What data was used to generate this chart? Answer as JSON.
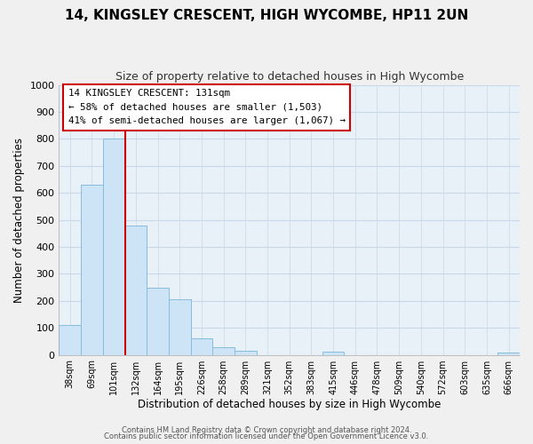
{
  "title": "14, KINGSLEY CRESCENT, HIGH WYCOMBE, HP11 2UN",
  "subtitle": "Size of property relative to detached houses in High Wycombe",
  "xlabel": "Distribution of detached houses by size in High Wycombe",
  "ylabel": "Number of detached properties",
  "bin_labels": [
    "38sqm",
    "69sqm",
    "101sqm",
    "132sqm",
    "164sqm",
    "195sqm",
    "226sqm",
    "258sqm",
    "289sqm",
    "321sqm",
    "352sqm",
    "383sqm",
    "415sqm",
    "446sqm",
    "478sqm",
    "509sqm",
    "540sqm",
    "572sqm",
    "603sqm",
    "635sqm",
    "666sqm"
  ],
  "bar_values": [
    110,
    630,
    800,
    480,
    250,
    205,
    60,
    28,
    15,
    0,
    0,
    0,
    12,
    0,
    0,
    0,
    0,
    0,
    0,
    0,
    8
  ],
  "bar_color": "#cce4f5",
  "bar_edge_color": "#88bbdd",
  "property_line_color": "#cc0000",
  "ylim": [
    0,
    1000
  ],
  "yticks": [
    0,
    100,
    200,
    300,
    400,
    500,
    600,
    700,
    800,
    900,
    1000
  ],
  "annotation_title": "14 KINGSLEY CRESCENT: 131sqm",
  "annotation_line1": "← 58% of detached houses are smaller (1,503)",
  "annotation_line2": "41% of semi-detached houses are larger (1,067) →",
  "annotation_box_color": "#ffffff",
  "annotation_box_edge": "#cc0000",
  "footer1": "Contains HM Land Registry data © Crown copyright and database right 2024.",
  "footer2": "Contains public sector information licensed under the Open Government Licence v3.0.",
  "background_color": "#f0f0f0",
  "plot_background": "#e8f0f8",
  "grid_color": "#c8d8e8"
}
